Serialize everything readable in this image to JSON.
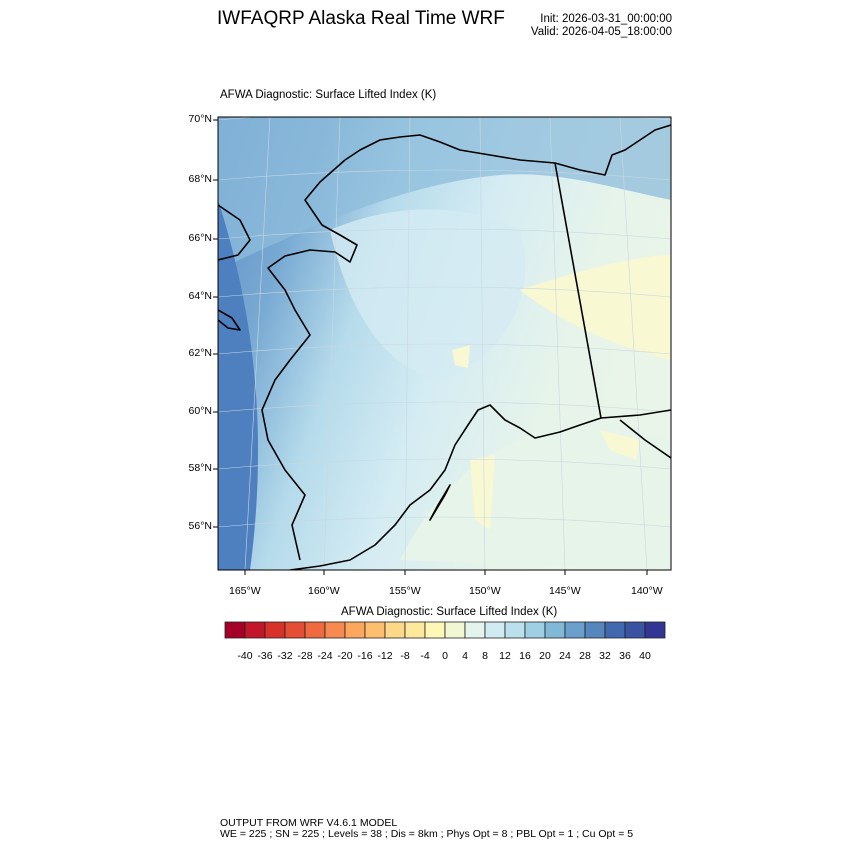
{
  "header": {
    "title": "IWFAQRP Alaska Real Time WRF",
    "init": "Init: 2026-03-31_00:00:00",
    "valid": "Valid: 2026-04-05_18:00:00"
  },
  "map": {
    "subtitle": "AFWA Diagnostic: Surface Lifted Index   (K)",
    "lat_labels": [
      "70°N",
      "68°N",
      "66°N",
      "64°N",
      "62°N",
      "60°N",
      "58°N",
      "56°N"
    ],
    "lon_labels": [
      "165°W",
      "160°W",
      "155°W",
      "150°W",
      "145°W",
      "140°W"
    ],
    "field_colors": {
      "far_west": "#4e7fbf",
      "west": "#6d9fcd",
      "north": "#8dbcdb",
      "central": "#c9e5f0",
      "southeast": "#e7f4ea",
      "positive_patch": "#f8f8d2"
    }
  },
  "colorbar": {
    "title": "AFWA Diagnostic: Surface Lifted Index  (K)",
    "labels": [
      "-40",
      "-36",
      "-32",
      "-28",
      "-24",
      "-20",
      "-16",
      "-12",
      "-8",
      "-4",
      "0",
      "4",
      "8",
      "12",
      "16",
      "20",
      "24",
      "28",
      "32",
      "36",
      "40"
    ],
    "colors": [
      "#a50026",
      "#c2172b",
      "#d8312a",
      "#e34e34",
      "#f06a40",
      "#f78a50",
      "#fca65e",
      "#fdbf6f",
      "#fed889",
      "#fee89c",
      "#fff7b5",
      "#f0f7d2",
      "#e4f3ec",
      "#d1ebf2",
      "#bae0ec",
      "#9fcfe3",
      "#82b8d7",
      "#6aa0cb",
      "#5686be",
      "#4269b0",
      "#3a52a2",
      "#313695"
    ]
  },
  "footer": {
    "line1": "OUTPUT FROM WRF V4.6.1 MODEL",
    "line2": "WE = 225 ; SN = 225 ; Levels = 38 ; Dis = 8km ; Phys Opt = 8 ; PBL Opt = 1 ; Cu Opt = 5"
  }
}
